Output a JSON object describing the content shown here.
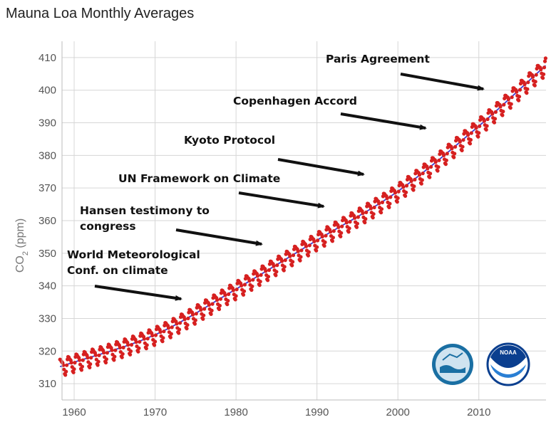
{
  "chart_data": {
    "type": "scatter",
    "title": "Mauna Loa Monthly Averages",
    "ylabel_main": "CO",
    "ylabel_sub": "2",
    "ylabel_unit": " (ppm)",
    "xlim": [
      1958.5,
      2018.3
    ],
    "ylim": [
      305,
      415
    ],
    "x_ticks": [
      1960,
      1970,
      1980,
      1990,
      2000,
      2010
    ],
    "y_ticks": [
      310,
      320,
      330,
      340,
      350,
      360,
      370,
      380,
      390,
      400,
      410
    ],
    "grid": true,
    "series": [
      {
        "kind": "monthly points",
        "color": "#d62020",
        "x_start": 1958.25,
        "x_end": 2018.3
      },
      {
        "kind": "trend line",
        "color": "#3b3bd6"
      }
    ],
    "trend_fit": {
      "x": [
        1958,
        1970,
        1980,
        1990,
        2000,
        2010,
        2018
      ],
      "y": [
        315,
        325,
        339,
        354,
        369,
        389,
        407
      ]
    },
    "seasonal_amplitude_ppm": 3.2,
    "annotations": [
      {
        "lines": [
          "Paris Agreement"
        ],
        "x": 2015.9
      },
      {
        "lines": [
          "Copenhagen Accord"
        ],
        "x": 2009.9
      },
      {
        "lines": [
          "Kyoto Protocol"
        ],
        "x": 1997.9
      },
      {
        "lines": [
          "UN Framework on Climate"
        ],
        "x": 1992.4
      },
      {
        "lines": [
          "Hansen testimony to",
          "congress"
        ],
        "x": 1988.5
      },
      {
        "lines": [
          "World Meteorological",
          "Conf. on climate"
        ],
        "x": 1979.1
      }
    ],
    "logos": [
      {
        "name": "scripps-logo",
        "colors": [
          "#1a6fa3",
          "#cfe3f0"
        ]
      },
      {
        "name": "noaa-logo",
        "colors": [
          "#0b3f8f",
          "#2a7fd4"
        ]
      }
    ]
  }
}
